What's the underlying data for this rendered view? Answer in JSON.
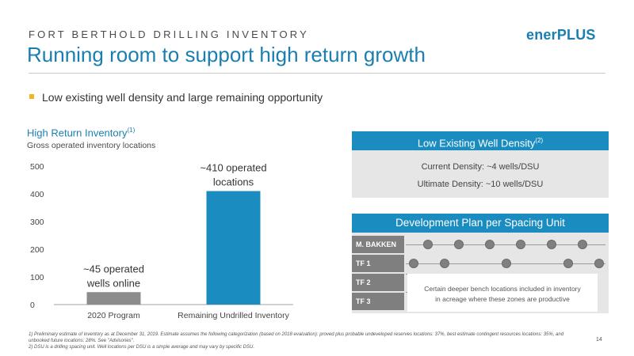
{
  "header": {
    "kicker": "FORT BERTHOLD DRILLING INVENTORY",
    "title": "Running room to support high return growth",
    "logo_main": "ener",
    "logo_plus": "PLUS",
    "logo_dot": "."
  },
  "bullet": "Low existing well density and large remaining opportunity",
  "inventory": {
    "title": "High Return Inventory",
    "title_note": "(1)",
    "subtitle": "Gross operated inventory locations"
  },
  "chart_data": {
    "type": "bar",
    "categories": [
      "2020 Program",
      "Remaining Undrilled Inventory"
    ],
    "values": [
      45,
      410
    ],
    "ylim": [
      0,
      500
    ],
    "yticks": [
      0,
      100,
      200,
      300,
      400,
      500
    ],
    "data_labels": [
      [
        "~45 operated",
        "wells online"
      ],
      [
        "~410 operated",
        "locations"
      ]
    ],
    "colors": [
      "#8c8c8c",
      "#1a8cc0"
    ],
    "grid": false
  },
  "density": {
    "title": "Low Existing Well Density",
    "title_note": "(2)",
    "current": "Current Density: ~4 wells/DSU",
    "ultimate": "Ultimate Density: ~10 wells/DSU"
  },
  "dev_plan": {
    "title": "Development Plan per Spacing Unit",
    "rows": [
      "M. BAKKEN",
      "TF 1",
      "TF 2",
      "TF 3"
    ],
    "deeper_line1": "Certain deeper bench locations included in inventory",
    "deeper_line2": "in acreage where these zones are productive"
  },
  "footnotes": {
    "note1": "1)  Preliminary estimate of inventory as at December 31, 2019. Estimate assumes the following categorization (based on 2018 evaluation): proved plus probable undeveloped reserves locations: 37%, best estimate contingent resources locations: 35%, and unbooked future locations: 28%. See \"Advisories\".",
    "note2": "2)  DSU is a drilling spacing unit. Well locations per DSU is a simple average and may vary by specific DSU."
  },
  "page_number": "14",
  "colors": {
    "brand_blue": "#1a8cc0",
    "accent_yellow": "#f2b51d",
    "bar_gray": "#8c8c8c",
    "panel_gray": "#e6e6e6"
  }
}
